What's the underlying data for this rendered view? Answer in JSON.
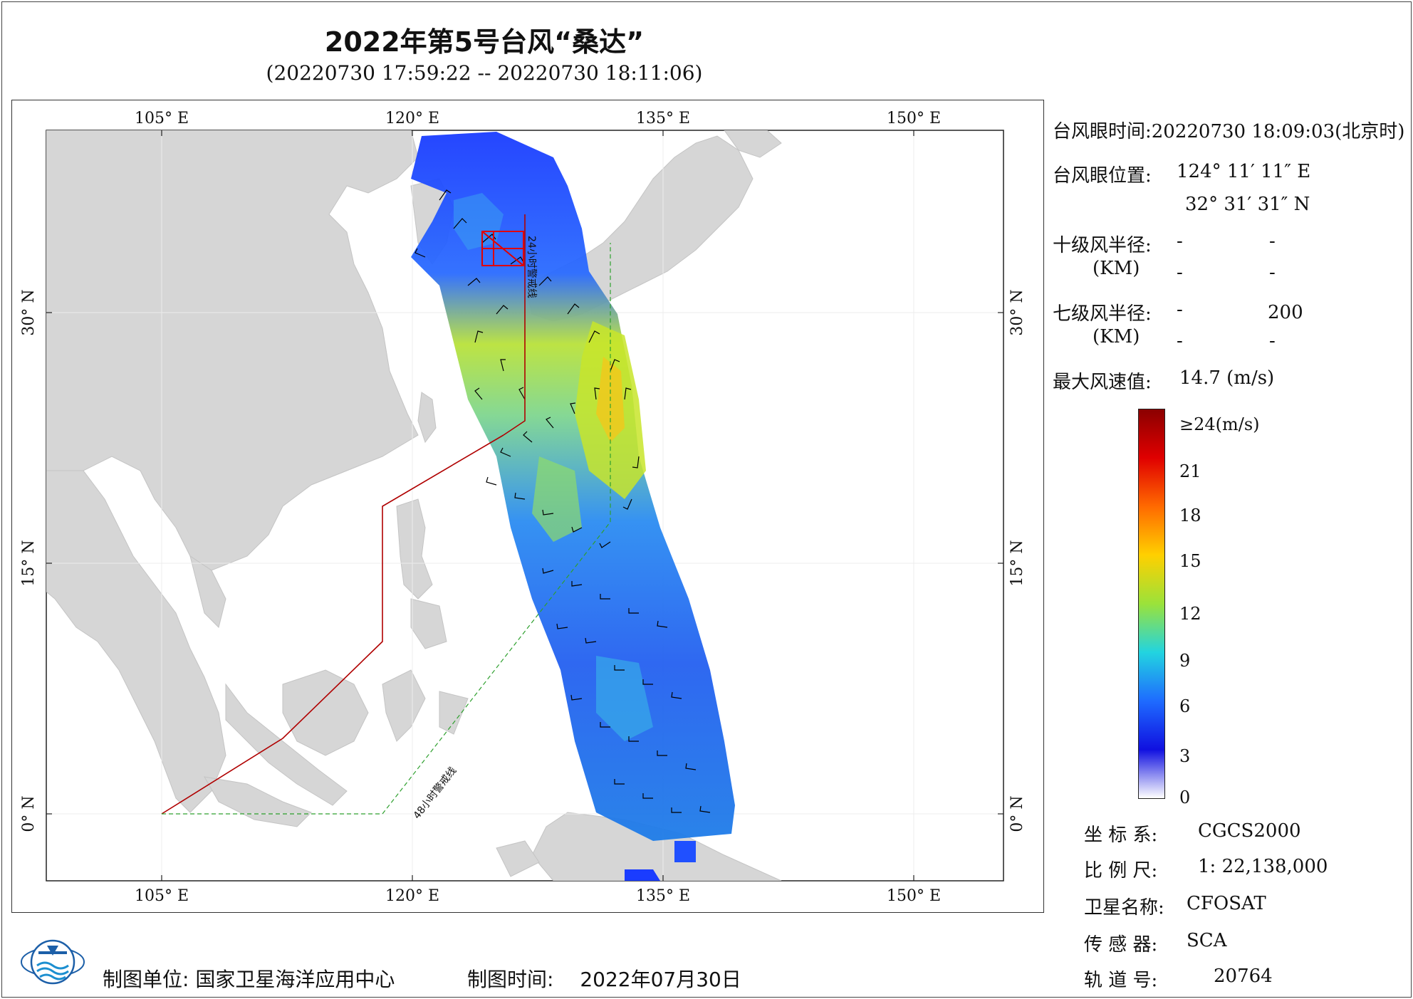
{
  "title": "2022年第5号台风“桑达”",
  "subtitle": "(20220730 17:59:22 -- 20220730 18:11:06)",
  "map": {
    "lon_ticks": [
      "105° E",
      "120° E",
      "135° E",
      "150° E"
    ],
    "lat_ticks": [
      "30° N",
      "15° N",
      "0° N"
    ],
    "line_labels": {
      "line24": "24小时警戒线",
      "line48": "48小时警戒线"
    },
    "colors": {
      "land": "#d4d4d4",
      "sea": "#ffffff",
      "warning24": "#b00000",
      "warning48": "#2ea02e",
      "eye_box": "#e00000"
    }
  },
  "info": {
    "eye_time_label": "台风眼时间:",
    "eye_time_value": "20220730 18:09:03(北京时)",
    "eye_pos_label": "台风眼位置:",
    "eye_lon": "124° 11′ 11″ E",
    "eye_lat": "32° 31′ 31″ N",
    "r10_label": "十级风半径:",
    "r7_label": "七级风半径:",
    "km_label": "(KM)",
    "r10_values": [
      "-",
      "-",
      "-",
      "-"
    ],
    "r7_values": [
      "-",
      "200",
      "-",
      "-"
    ],
    "max_wind_label": "最大风速值:",
    "max_wind_value": "14.7  (m/s)"
  },
  "colorbar": {
    "labels": [
      "≥24(m/s)",
      "21",
      "18",
      "15",
      "12",
      "9",
      "6",
      "3",
      "0"
    ],
    "stops": [
      "#8b0000",
      "#e00000",
      "#ff6a00",
      "#ffd000",
      "#9be23a",
      "#22d4e0",
      "#1e6bff",
      "#1010e0",
      "#ffffff"
    ]
  },
  "metadata": {
    "coord_label": "坐 标 系:",
    "coord_value": "CGCS2000",
    "scale_label": "比 例 尺:",
    "scale_value": "1: 22,138,000",
    "satellite_label": "卫星名称:",
    "satellite_value": "CFOSAT",
    "sensor_label": "传 感 器:",
    "sensor_value": "SCA",
    "orbit_label": "轨 道 号:",
    "orbit_value": "20764"
  },
  "footer": {
    "unit_label": "制图单位:",
    "unit_value": "国家卫星海洋应用中心",
    "time_label": "制图时间:",
    "time_value": "2022年07月30日"
  }
}
